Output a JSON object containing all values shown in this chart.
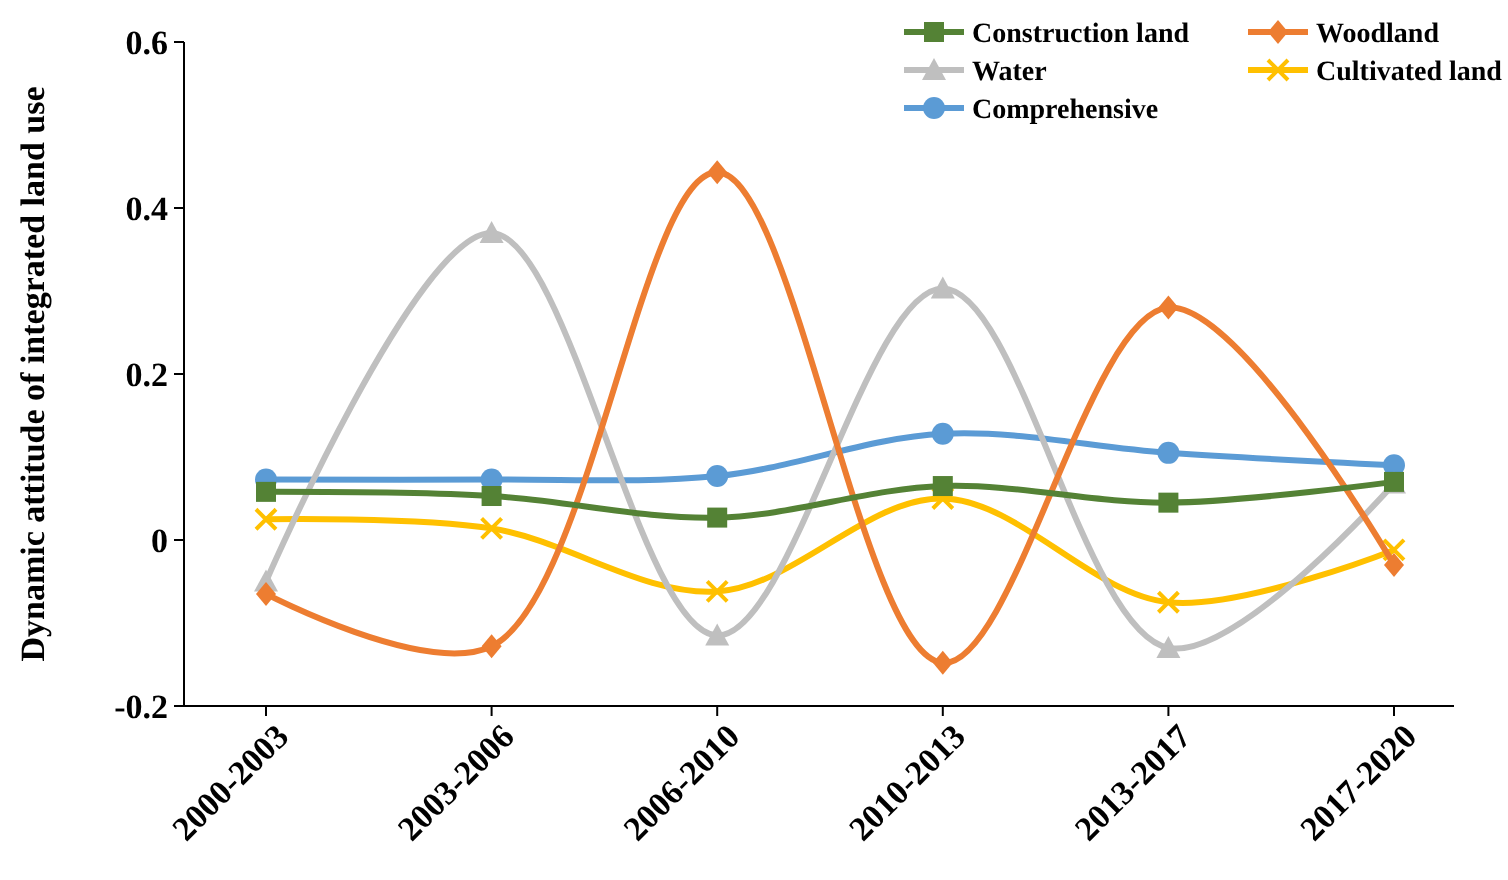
{
  "chart_data": {
    "type": "line",
    "ylabel": "Dynamic attitude of integrated land use",
    "categories": [
      "2000-2003",
      "2003-2006",
      "2006-2010",
      "2010-2013",
      "2013-2017",
      "2017-2020"
    ],
    "series": [
      {
        "name": "Construction land",
        "color": "#548235",
        "marker": "square",
        "values": [
          0.058,
          0.053,
          0.027,
          0.065,
          0.045,
          0.07
        ]
      },
      {
        "name": "Woodland",
        "color": "#ed7d31",
        "marker": "diamond",
        "values": [
          -0.065,
          -0.128,
          0.443,
          -0.148,
          0.28,
          -0.03
        ]
      },
      {
        "name": "Water",
        "color": "#bfbfbf",
        "marker": "triangle",
        "values": [
          -0.05,
          0.37,
          -0.115,
          0.303,
          -0.13,
          0.068
        ]
      },
      {
        "name": "Cultivated land",
        "color": "#ffc000",
        "marker": "cross",
        "values": [
          0.025,
          0.014,
          -0.062,
          0.05,
          -0.075,
          -0.012
        ]
      },
      {
        "name": "Comprehensive",
        "color": "#5b9bd5",
        "marker": "circle",
        "values": [
          0.073,
          0.073,
          0.077,
          0.128,
          0.105,
          0.09
        ]
      }
    ],
    "ylim": [
      -0.2,
      0.6
    ],
    "yticks": [
      -0.2,
      0,
      0.2,
      0.4,
      0.6
    ],
    "grid": false,
    "legend": "top right",
    "line_style": "solid"
  }
}
